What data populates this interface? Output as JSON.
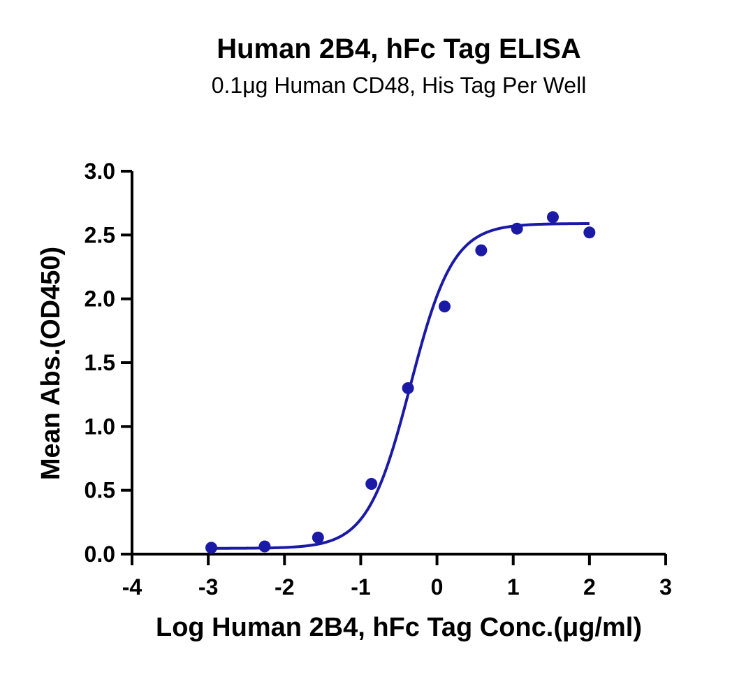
{
  "chart_data": {
    "type": "scatter",
    "title": "Human 2B4, hFc Tag ELISA",
    "subtitle": "0.1μg Human CD48, His Tag Per Well",
    "xlabel": "Log Human 2B4, hFc Tag Conc.(μg/ml)",
    "ylabel": "Mean Abs.(OD450)",
    "xlim": [
      -4,
      3
    ],
    "ylim": [
      0,
      3.0
    ],
    "x_ticks": [
      "-4",
      "-3",
      "-2",
      "-1",
      "0",
      "1",
      "2",
      "3"
    ],
    "y_ticks": [
      "0.0",
      "0.5",
      "1.0",
      "1.5",
      "2.0",
      "2.5",
      "3.0"
    ],
    "grid": false,
    "color": "#1a1aa6",
    "series": [
      {
        "x": [
          -2.96,
          -2.26,
          -1.56,
          -0.86,
          -0.38,
          0.1,
          0.58,
          1.05,
          1.52,
          2.0
        ],
        "y": [
          0.05,
          0.06,
          0.13,
          0.55,
          1.3,
          1.94,
          2.38,
          2.55,
          2.64,
          2.52
        ],
        "fit": "sigmoid"
      }
    ]
  }
}
